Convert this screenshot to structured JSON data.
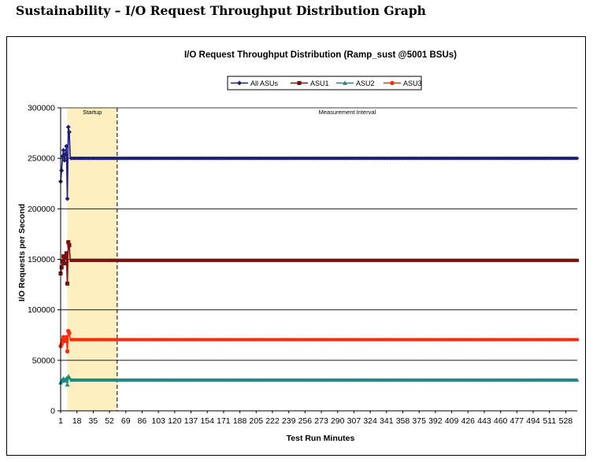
{
  "page_title": "Sustainability – I/O Request Throughput Distribution Graph",
  "chart_data": {
    "type": "line",
    "title": "I/O Request Throughput Distribution (Ramp_sust @5001 BSUs)",
    "xlabel": "Test Run Minutes",
    "ylabel": "I/O Requests per Second",
    "ylim": [
      0,
      300000
    ],
    "yticks": [
      "0",
      "50000",
      "100000",
      "150000",
      "200000",
      "250000",
      "300000"
    ],
    "xlim": [
      1,
      540
    ],
    "xticks": [
      "1",
      "18",
      "35",
      "52",
      "69",
      "86",
      "103",
      "120",
      "137",
      "154",
      "171",
      "188",
      "205",
      "222",
      "239",
      "256",
      "273",
      "290",
      "307",
      "324",
      "341",
      "358",
      "375",
      "392",
      "409",
      "426",
      "443",
      "460",
      "477",
      "494",
      "511",
      "528"
    ],
    "grid": true,
    "legend_position": "top",
    "regions": [
      {
        "label": "Startup",
        "x_start": 8,
        "x_end": 60,
        "color": "#fdefbf"
      },
      {
        "label": "Measurement Interval",
        "x_start": 60,
        "x_end": 540
      }
    ],
    "series": [
      {
        "name": "All ASUs",
        "color": "#1f1f7a",
        "marker": "diamond",
        "ramp_x": [
          1,
          2,
          3,
          4,
          5,
          6,
          7,
          8,
          9,
          10
        ],
        "ramp_y": [
          227000,
          238000,
          252000,
          258000,
          248000,
          254000,
          262000,
          210000,
          281000,
          276000
        ],
        "steady_value": 250000
      },
      {
        "name": "ASU1",
        "color": "#7a1010",
        "marker": "square",
        "ramp_x": [
          1,
          2,
          3,
          4,
          5,
          6,
          7,
          8,
          9,
          10
        ],
        "ramp_y": [
          136000,
          142000,
          148000,
          153000,
          146000,
          152000,
          156000,
          126000,
          167000,
          164000
        ],
        "steady_value": 149000
      },
      {
        "name": "ASU2",
        "color": "#1f8a80",
        "marker": "triangle",
        "ramp_x": [
          1,
          2,
          3,
          4,
          5,
          6,
          7,
          8,
          9,
          10
        ],
        "ramp_y": [
          28000,
          29500,
          31000,
          31800,
          29800,
          31000,
          32000,
          26000,
          34000,
          33000
        ],
        "steady_value": 30500
      },
      {
        "name": "ASU3",
        "color": "#ff2a0a",
        "marker": "circle",
        "ramp_x": [
          1,
          2,
          3,
          4,
          5,
          6,
          7,
          8,
          9,
          10
        ],
        "ramp_y": [
          64000,
          66000,
          70000,
          73000,
          69000,
          71000,
          73000,
          59000,
          79000,
          77000
        ],
        "steady_value": 70500
      }
    ]
  }
}
